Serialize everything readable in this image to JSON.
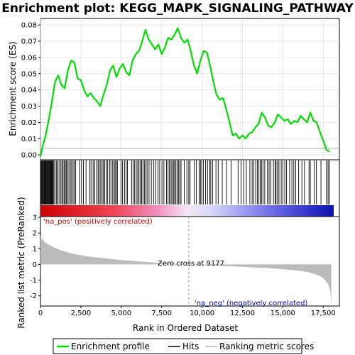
{
  "chart_data": [
    {
      "type": "line",
      "title": "Enrichment plot: KEGG_MAPK_SIGNALING_PATHWAY",
      "ylabel": "Enrichment score (ES)",
      "ylim": [
        -0.003,
        0.084
      ],
      "xlim": [
        0,
        18500
      ],
      "yticks": [
        "0.00",
        "0.01",
        "0.02",
        "0.03",
        "0.04",
        "0.05",
        "0.06",
        "0.07",
        "0.08"
      ],
      "grid": true,
      "color": "#00dd00",
      "series": [
        {
          "x": [
            0,
            150,
            300,
            500,
            700,
            900,
            1100,
            1300,
            1500,
            1700,
            1900,
            2100,
            2300,
            2500,
            2700,
            2900,
            3100,
            3300,
            3500,
            3700,
            3900,
            4100,
            4300,
            4500,
            4700,
            4900,
            5100,
            5300,
            5500,
            5700,
            5900,
            6100,
            6300,
            6500,
            6700,
            6900,
            7100,
            7300,
            7500,
            7700,
            7900,
            8100,
            8300,
            8500,
            8700,
            8900,
            9100,
            9300,
            9500,
            9700,
            9900,
            10100,
            10300,
            10500,
            10700,
            10900,
            11100,
            11300,
            11500,
            11700,
            11900,
            12100,
            12300,
            12500,
            12700,
            12900,
            13100,
            13300,
            13500,
            13700,
            13900,
            14100,
            14300,
            14500,
            14700,
            14900,
            15100,
            15300,
            15500,
            15700,
            15900,
            16100,
            16300,
            16500,
            16700,
            16900,
            17100,
            17300,
            17500,
            17700,
            17900
          ],
          "values": [
            -0.001,
            0.006,
            0.011,
            0.021,
            0.032,
            0.045,
            0.049,
            0.043,
            0.041,
            0.052,
            0.058,
            0.057,
            0.047,
            0.046,
            0.04,
            0.036,
            0.038,
            0.035,
            0.033,
            0.03,
            0.037,
            0.043,
            0.052,
            0.055,
            0.048,
            0.053,
            0.056,
            0.051,
            0.049,
            0.058,
            0.062,
            0.064,
            0.07,
            0.077,
            0.071,
            0.068,
            0.065,
            0.068,
            0.062,
            0.066,
            0.072,
            0.071,
            0.074,
            0.078,
            0.072,
            0.069,
            0.071,
            0.064,
            0.055,
            0.05,
            0.058,
            0.064,
            0.063,
            0.055,
            0.045,
            0.037,
            0.034,
            0.035,
            0.028,
            0.02,
            0.012,
            0.013,
            0.01,
            0.012,
            0.01,
            0.013,
            0.014,
            0.017,
            0.019,
            0.026,
            0.023,
            0.018,
            0.017,
            0.02,
            0.025,
            0.023,
            0.021,
            0.022,
            0.019,
            0.021,
            0.02,
            0.024,
            0.022,
            0.02,
            0.026,
            0.021,
            0.02,
            0.014,
            0.009,
            0.003,
            0.002
          ]
        }
      ]
    },
    {
      "type": "bar",
      "ylabel": "",
      "xlim": [
        0,
        18500
      ],
      "series": [
        {
          "name": "Hits",
          "x": [
            20,
            60,
            100,
            140,
            170,
            220,
            260,
            290,
            330,
            370,
            420,
            460,
            500,
            540,
            580,
            620,
            660,
            700,
            740,
            780,
            830,
            900,
            1000,
            1050,
            1150,
            1260,
            1330,
            1400,
            1470,
            1540,
            1600,
            1680,
            1760,
            1850,
            1930,
            2020,
            2100,
            2180,
            2420,
            2540,
            2660,
            2820,
            3050,
            3130,
            3260,
            3360,
            3480,
            3570,
            3640,
            3730,
            3820,
            3900,
            3980,
            4080,
            4160,
            4280,
            4360,
            4470,
            4560,
            4620,
            4700,
            4760,
            4980,
            5080,
            5200,
            5300,
            5380,
            5640,
            5730,
            5830,
            5930,
            6020,
            6100,
            6190,
            6260,
            6340,
            6430,
            6520,
            6600,
            6720,
            6860,
            7000,
            7140,
            7280,
            7380,
            7520,
            7640,
            7800,
            7900,
            7980,
            8080,
            8140,
            8230,
            8300,
            8380,
            8460,
            8540,
            8620,
            8700,
            8900,
            9060,
            9180,
            9260,
            9520,
            9650,
            9820,
            9900,
            9980,
            10080,
            10220,
            10340,
            10480,
            10540,
            10650,
            10860,
            11000,
            11250,
            11520,
            11800,
            12230,
            12420,
            12580,
            12740,
            12960,
            13100,
            13200,
            13320,
            13420,
            13520,
            13600,
            13680,
            13770,
            13880,
            14050,
            14150,
            14260,
            14420,
            14520,
            14580,
            14670,
            14760,
            14900,
            15000,
            15120,
            15230,
            15420,
            15560,
            15680,
            15800,
            15980,
            16180,
            16340,
            16620,
            16700,
            16950,
            17080,
            17360,
            17700,
            17800,
            17880
          ]
        },
        {
          "name": "Ranking metric scores",
          "x": [
            0,
            100,
            300,
            600,
            1000,
            1500,
            2000,
            3000,
            4000,
            5000,
            6000,
            7000,
            8000,
            9000,
            9177,
            10000,
            11000,
            12000,
            13000,
            14000,
            15000,
            16000,
            16500,
            17000,
            17300,
            17500,
            17700,
            17850,
            17950,
            18000
          ],
          "values": [
            1.8,
            1.6,
            1.4,
            1.2,
            1.0,
            0.82,
            0.68,
            0.5,
            0.38,
            0.28,
            0.2,
            0.12,
            0.06,
            0.01,
            0.0,
            -0.04,
            -0.09,
            -0.13,
            -0.18,
            -0.23,
            -0.3,
            -0.4,
            -0.48,
            -0.62,
            -0.75,
            -0.88,
            -1.1,
            -1.35,
            -1.8,
            -2.6
          ]
        }
      ]
    },
    {
      "type": "line",
      "ylabel": "Ranked list metric (PreRanked)",
      "xlabel": "Rank in Ordered Dataset",
      "ylim": [
        -2.65,
        3.05
      ],
      "xlim": [
        0,
        18500
      ],
      "yticks": [
        "-2",
        "-1",
        "0",
        "1",
        "2",
        "3"
      ],
      "xticks": [
        "0",
        "2,500",
        "5,000",
        "7,500",
        "10,000",
        "12,500",
        "15,000",
        "17,500"
      ],
      "annotations": {
        "pos_label": "'na_pos' (positively correlated)",
        "neg_label": "'na_neg' (negatively correlated)",
        "zero_cross": "Zero cross at 9177"
      },
      "zero_cross_x": 9177
    }
  ],
  "legend": {
    "items": [
      {
        "label": "Enrichment profile",
        "color": "#00dd00"
      },
      {
        "label": "Hits",
        "color": "#000000"
      },
      {
        "label": "Ranking metric scores",
        "color": "#bbbbbb"
      }
    ]
  }
}
